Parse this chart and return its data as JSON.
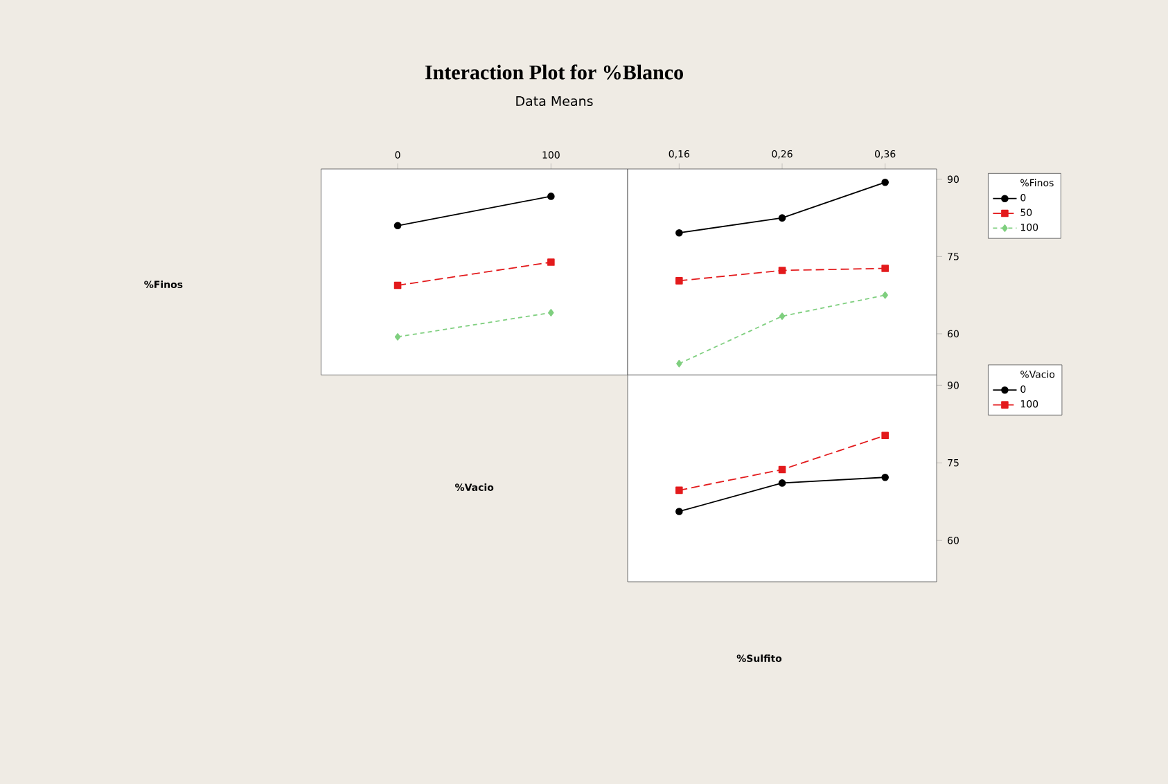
{
  "chart_data": [
    {
      "type": "line",
      "title": "Interaction Plot for %Blanco",
      "subtitle": "Data Means",
      "xlabel": "%Vacio",
      "ylabel": "%Finos",
      "categories": [
        "0",
        "100"
      ],
      "ylim": [
        52,
        92
      ],
      "tick_labels": "x",
      "grid": false,
      "legend": false,
      "series": [
        {
          "color": "#000000",
          "marker": "circle",
          "line_style": "solid",
          "values": [
            81.0,
            86.7
          ]
        },
        {
          "color": "#e31a1c",
          "marker": "square",
          "line_style": "dashed",
          "values": [
            69.4,
            73.9
          ]
        },
        {
          "color": "#7fcf7f",
          "marker": "diamond",
          "line_style": "dotted",
          "values": [
            59.4,
            64.1
          ]
        }
      ]
    },
    {
      "type": "line",
      "categories": [
        "0,16",
        "0,26",
        "0,36"
      ],
      "ylim": [
        52,
        92
      ],
      "yticks": [
        60,
        75,
        90
      ],
      "grid": false,
      "legend": "right",
      "legend_title": "%Finos",
      "series": [
        {
          "name": "0",
          "color": "#000000",
          "marker": "circle",
          "line_style": "solid",
          "values": [
            79.6,
            82.5,
            89.4
          ]
        },
        {
          "name": "50",
          "color": "#e31a1c",
          "marker": "square",
          "line_style": "dashed",
          "values": [
            70.3,
            72.3,
            72.7
          ]
        },
        {
          "name": "100",
          "color": "#7fcf7f",
          "marker": "diamond",
          "line_style": "dotted",
          "values": [
            54.2,
            63.4,
            67.5
          ]
        }
      ]
    },
    {
      "type": "line",
      "xlabel": "%Sulfito",
      "categories": [
        "0,16",
        "0,26",
        "0,36"
      ],
      "ylim": [
        52,
        92
      ],
      "yticks": [
        60,
        75,
        90
      ],
      "tick_labels": "y",
      "grid": false,
      "legend": "right",
      "legend_title": "%Vacio",
      "series": [
        {
          "name": "0",
          "color": "#000000",
          "marker": "circle",
          "line_style": "solid",
          "values": [
            65.6,
            71.1,
            72.2
          ]
        },
        {
          "name": "100",
          "color": "#e31a1c",
          "marker": "square",
          "line_style": "dashed",
          "values": [
            69.7,
            73.7,
            80.3
          ]
        }
      ]
    }
  ]
}
